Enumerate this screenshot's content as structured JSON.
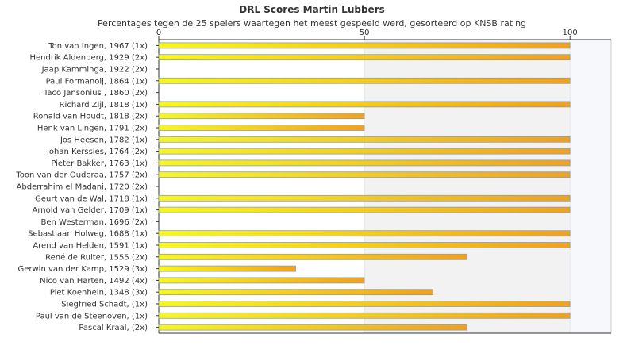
{
  "chart_data": {
    "type": "bar",
    "orientation": "horizontal",
    "title": "DRL Scores Martin Lubbers",
    "subtitle": "Percentages tegen de 25 spelers waartegen het meest gespeeld werd, gesorteerd op KNSB rating",
    "xlim": [
      0,
      110
    ],
    "xticks": [
      "0",
      "50",
      "100"
    ],
    "grid": false,
    "categories": [
      "Ton van Ingen, 1967 (1x)",
      "Hendrik Aldenberg, 1929 (2x)",
      "Jaap Kamminga, 1922 (2x)",
      "Paul Formanoij, 1864 (1x)",
      "Taco Jansonius , 1860 (2x)",
      "Richard Zijl, 1818 (1x)",
      "Ronald van Houdt, 1818 (2x)",
      "Henk van Lingen, 1791 (2x)",
      "Jos Heesen, 1782 (1x)",
      "Johan Kerssies, 1764 (2x)",
      "Pieter Bakker, 1763 (1x)",
      "Toon van der Ouderaa, 1757 (2x)",
      "Abderrahim el Madani, 1720 (2x)",
      "Geurt van de Wal, 1718 (1x)",
      "Arnold van Gelder, 1709 (1x)",
      "Ben Westerman, 1696 (2x)",
      "Sebastiaan Holweg, 1688 (1x)",
      "Arend van Helden, 1591 (1x)",
      "René de Ruiter, 1555 (2x)",
      "Gerwin van der Kamp, 1529 (3x)",
      "Nico van Harten, 1492 (4x)",
      "Piet Koenhein, 1348 (3x)",
      "Siegfried Schadt,  (1x)",
      "Paul van de Steenoven,  (1x)",
      "Pascal Kraal,  (2x)"
    ],
    "values": [
      100,
      100,
      0,
      100,
      0,
      100,
      50,
      50,
      100,
      100,
      100,
      100,
      0,
      100,
      100,
      0,
      100,
      100,
      75,
      33.3,
      50,
      66.7,
      100,
      100,
      75
    ],
    "colors": {
      "bar_start": "#f7f722",
      "bar_end": "#f0a020",
      "bar_stroke": "#8a9fb5",
      "band_mid": "#f2f2f2",
      "band_right": "#f6f8fc",
      "axis": "#333333",
      "plot_border": "#cccccc"
    }
  }
}
